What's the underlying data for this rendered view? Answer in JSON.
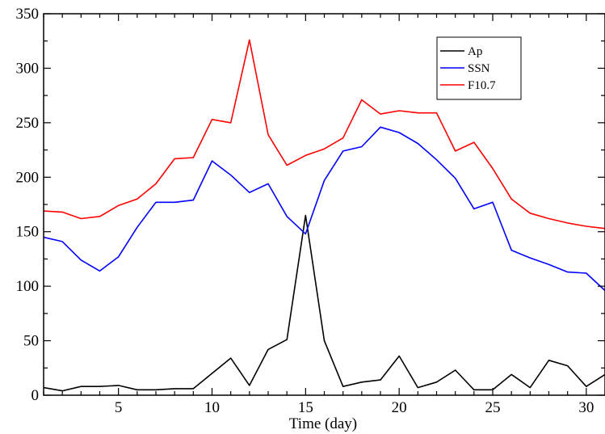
{
  "chart_data": {
    "type": "line",
    "title": "",
    "xlabel": "Time (day)",
    "ylabel": "",
    "xlim": [
      1,
      31
    ],
    "ylim": [
      0,
      350
    ],
    "x_major_ticks": [
      5,
      10,
      15,
      20,
      25,
      30
    ],
    "x_minor_ticks": [
      1,
      2,
      3,
      4,
      6,
      7,
      8,
      9,
      11,
      12,
      13,
      14,
      16,
      17,
      18,
      19,
      21,
      22,
      23,
      24,
      26,
      27,
      28,
      29,
      31
    ],
    "y_major_ticks": [
      0,
      50,
      100,
      150,
      200,
      250,
      300,
      350
    ],
    "y_minor_ticks": [
      25,
      75,
      125,
      175,
      225,
      275,
      325
    ],
    "grid": false,
    "legend_position": "top-right",
    "x": [
      1,
      2,
      3,
      4,
      5,
      6,
      7,
      8,
      9,
      10,
      11,
      12,
      13,
      14,
      15,
      16,
      17,
      18,
      19,
      20,
      21,
      22,
      23,
      24,
      25,
      26,
      27,
      28,
      29,
      30,
      31
    ],
    "series": [
      {
        "name": "Ap",
        "color": "#000000",
        "values": [
          7,
          4,
          8,
          8,
          9,
          5,
          5,
          6,
          6,
          20,
          34,
          9,
          42,
          51,
          165,
          50,
          8,
          12,
          14,
          36,
          7,
          12,
          23,
          5,
          5,
          19,
          7,
          32,
          27,
          8,
          19
        ]
      },
      {
        "name": "SSN",
        "color": "#0000ff",
        "values": [
          145,
          141,
          124,
          114,
          127,
          154,
          177,
          177,
          179,
          215,
          202,
          186,
          194,
          164,
          148,
          197,
          224,
          228,
          246,
          241,
          231,
          216,
          199,
          171,
          177,
          133,
          126,
          120,
          113,
          112,
          96
        ]
      },
      {
        "name": "F10.7",
        "color": "#ff0000",
        "values": [
          169,
          168,
          162,
          164,
          174,
          180,
          194,
          217,
          218,
          253,
          250,
          326,
          239,
          211,
          220,
          226,
          236,
          271,
          258,
          261,
          259,
          259,
          224,
          232,
          208,
          180,
          167,
          162,
          158,
          155,
          153
        ]
      }
    ]
  }
}
